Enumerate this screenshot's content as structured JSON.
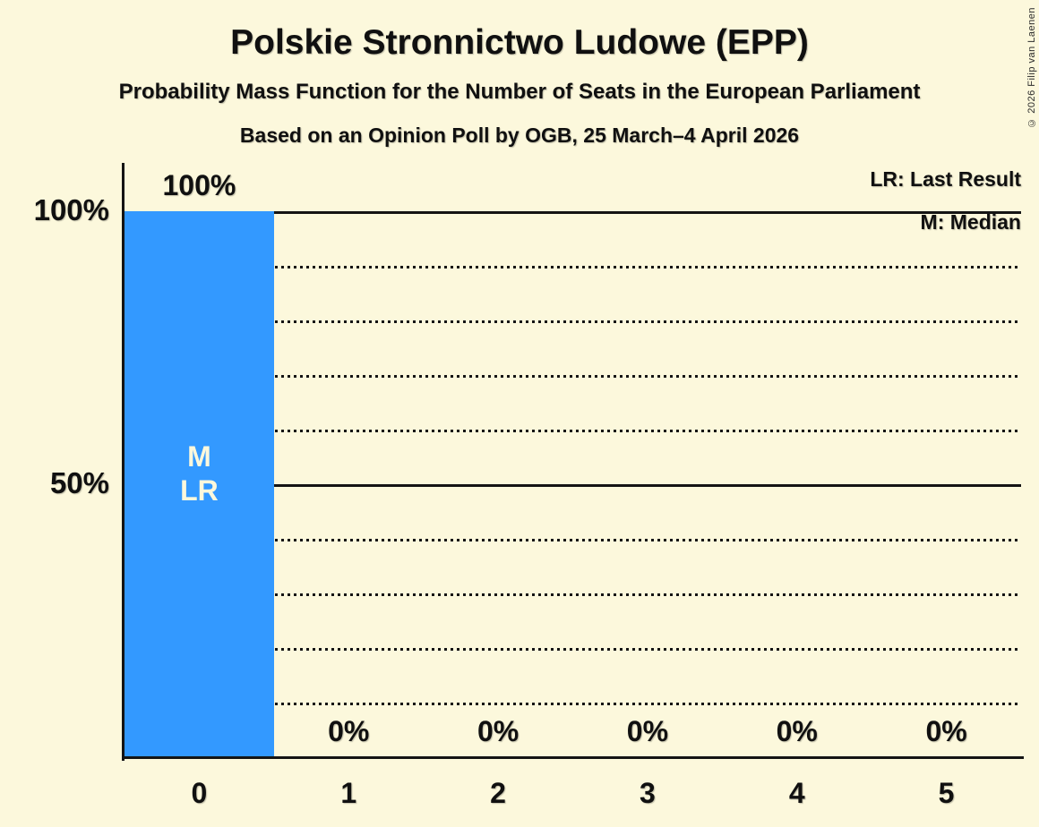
{
  "title": "Polskie Stronnictwo Ludowe (EPP)",
  "subtitle": "Probability Mass Function for the Number of Seats in the European Parliament",
  "poll_info": "Based on an Opinion Poll by OGB, 25 March–4 April 2026",
  "copyright": "© 2026 Filip van Laenen",
  "legend": {
    "last_result": "LR: Last Result",
    "median": "M: Median"
  },
  "colors": {
    "background": "#FCF8DC",
    "bar": "#3399FF",
    "bar_annotation_text": "#FCF8DC",
    "text": "#101010"
  },
  "chart_data": {
    "type": "bar",
    "title": "Polskie Stronnictwo Ludowe (EPP)",
    "categories": [
      "0",
      "1",
      "2",
      "3",
      "4",
      "5"
    ],
    "values": [
      100,
      0,
      0,
      0,
      0,
      0
    ],
    "value_labels": [
      "100%",
      "0%",
      "0%",
      "0%",
      "0%",
      "0%"
    ],
    "ylim": [
      0,
      100
    ],
    "yticks": [
      {
        "label": "100%",
        "value": 100
      },
      {
        "label": "50%",
        "value": 50
      }
    ],
    "gridlines": {
      "solid": [
        100,
        50
      ],
      "dotted": [
        90,
        80,
        70,
        60,
        40,
        30,
        20,
        10
      ]
    },
    "annotations": [
      {
        "category_index": 0,
        "lines": [
          "M",
          "LR"
        ]
      }
    ],
    "median_seats": 0,
    "last_result_seats": 0,
    "legend_position": "top-right",
    "grid": "horizontal-dotted-with-solid-50-100"
  }
}
